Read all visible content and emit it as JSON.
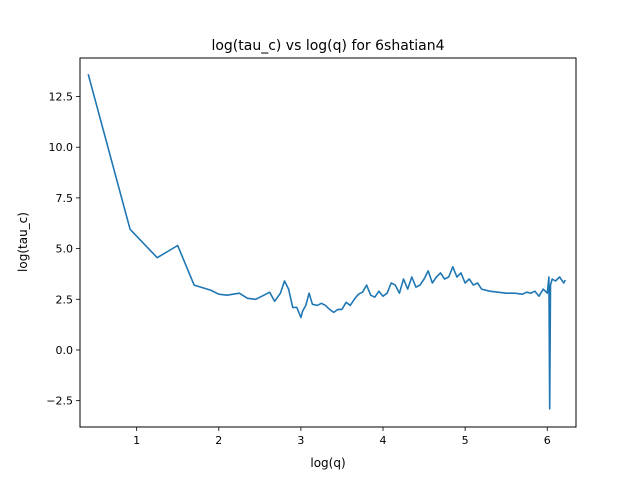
{
  "chart_data": {
    "type": "line",
    "title": "log(tau_c) vs log(q) for 6shatian4",
    "xlabel": "log(q)",
    "ylabel": "log(tau_c)",
    "xlim": [
      0.31,
      6.35
    ],
    "ylim": [
      -3.8,
      14.4
    ],
    "x_ticks": [
      1,
      2,
      3,
      4,
      5,
      6
    ],
    "x_tick_labels": [
      "1",
      "2",
      "3",
      "4",
      "5",
      "6"
    ],
    "y_ticks": [
      -2.5,
      0.0,
      2.5,
      5.0,
      7.5,
      10.0,
      12.5
    ],
    "y_tick_labels": [
      "−2.5",
      "0.0",
      "2.5",
      "5.0",
      "7.5",
      "10.0",
      "12.5"
    ],
    "grid": false,
    "series": [
      {
        "color": "#1f77b4",
        "x": [
          0.41,
          0.92,
          1.25,
          1.5,
          1.7,
          1.9,
          2.0,
          2.1,
          2.25,
          2.35,
          2.45,
          2.55,
          2.62,
          2.68,
          2.75,
          2.8,
          2.85,
          2.9,
          2.95,
          3.0,
          3.02,
          3.06,
          3.1,
          3.14,
          3.2,
          3.25,
          3.3,
          3.35,
          3.4,
          3.45,
          3.5,
          3.55,
          3.6,
          3.65,
          3.7,
          3.75,
          3.8,
          3.85,
          3.9,
          3.95,
          4.0,
          4.05,
          4.1,
          4.15,
          4.2,
          4.25,
          4.3,
          4.35,
          4.4,
          4.45,
          4.5,
          4.55,
          4.6,
          4.65,
          4.7,
          4.75,
          4.8,
          4.85,
          4.9,
          4.95,
          5.0,
          5.05,
          5.1,
          5.15,
          5.2,
          5.3,
          5.4,
          5.5,
          5.6,
          5.7,
          5.75,
          5.8,
          5.85,
          5.9,
          5.95,
          6.0,
          6.02,
          6.03,
          6.04,
          6.06,
          6.1,
          6.15,
          6.2,
          6.22
        ],
        "y": [
          13.6,
          5.95,
          4.55,
          5.15,
          3.2,
          2.95,
          2.75,
          2.7,
          2.8,
          2.55,
          2.5,
          2.7,
          2.85,
          2.4,
          2.8,
          3.4,
          3.0,
          2.1,
          2.1,
          1.6,
          1.9,
          2.2,
          2.8,
          2.25,
          2.2,
          2.3,
          2.2,
          2.0,
          1.85,
          2.0,
          2.0,
          2.35,
          2.2,
          2.5,
          2.75,
          2.85,
          3.2,
          2.7,
          2.6,
          2.9,
          2.65,
          2.8,
          3.3,
          3.2,
          2.8,
          3.5,
          3.0,
          3.6,
          3.1,
          3.2,
          3.5,
          3.9,
          3.3,
          3.6,
          3.8,
          3.5,
          3.6,
          4.1,
          3.6,
          3.8,
          3.3,
          3.5,
          3.2,
          3.3,
          3.0,
          2.9,
          2.85,
          2.8,
          2.8,
          2.75,
          2.85,
          2.8,
          2.9,
          2.65,
          3.0,
          2.8,
          3.6,
          -2.9,
          3.2,
          3.5,
          3.4,
          3.6,
          3.3,
          3.45
        ]
      }
    ]
  }
}
